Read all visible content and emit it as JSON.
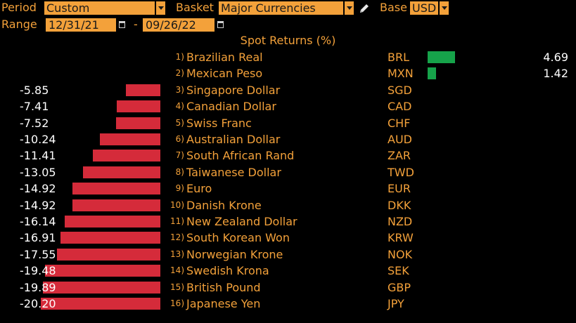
{
  "controls": {
    "period_label": "Period",
    "period_value": "Custom",
    "basket_label": "Basket",
    "basket_value": "Major Currencies",
    "base_label": "Base",
    "base_value": "USD",
    "range_label": "Range",
    "range_start": "12/31/21",
    "range_separator": "-",
    "range_end": "09/26/22"
  },
  "colors": {
    "accent": "#f3a13a",
    "negative": "#d52b3a",
    "positive": "#16a34a",
    "value_text": "#ffffff",
    "background": "#000000"
  },
  "chart_data": {
    "type": "bar",
    "title": "Spot Returns (%)",
    "rows": [
      {
        "rank": "1)",
        "name": "Brazilian Real",
        "code": "BRL",
        "display": "4.69",
        "value": 4.69
      },
      {
        "rank": "2)",
        "name": "Mexican Peso",
        "code": "MXN",
        "display": "1.42",
        "value": 1.42
      },
      {
        "rank": "3)",
        "name": "Singapore Dollar",
        "code": "SGD",
        "display": "-5.85",
        "value": -5.85
      },
      {
        "rank": "4)",
        "name": "Canadian Dollar",
        "code": "CAD",
        "display": "-7.41",
        "value": -7.41
      },
      {
        "rank": "5)",
        "name": "Swiss Franc",
        "code": "CHF",
        "display": "-7.52",
        "value": -7.52
      },
      {
        "rank": "6)",
        "name": "Australian Dollar",
        "code": "AUD",
        "display": "-10.24",
        "value": -10.24
      },
      {
        "rank": "7)",
        "name": "South African Rand",
        "code": "ZAR",
        "display": "-11.41",
        "value": -11.41
      },
      {
        "rank": "8)",
        "name": "Taiwanese Dollar",
        "code": "TWD",
        "display": "-13.05",
        "value": -13.05
      },
      {
        "rank": "9)",
        "name": "Euro",
        "code": "EUR",
        "display": "-14.92",
        "value": -14.92
      },
      {
        "rank": "10)",
        "name": "Danish Krone",
        "code": "DKK",
        "display": "-14.92",
        "value": -14.92
      },
      {
        "rank": "11)",
        "name": "New Zealand Dollar",
        "code": "NZD",
        "display": "-16.14",
        "value": -16.14
      },
      {
        "rank": "12)",
        "name": "South Korean Won",
        "code": "KRW",
        "display": "-16.91",
        "value": -16.91
      },
      {
        "rank": "13)",
        "name": "Norwegian Krone",
        "code": "NOK",
        "display": "-17.55",
        "value": -17.55
      },
      {
        "rank": "14)",
        "name": "Swedish Krona",
        "code": "SEK",
        "display": "-19.48",
        "value": -19.48
      },
      {
        "rank": "15)",
        "name": "British Pound",
        "code": "GBP",
        "display": "-19.89",
        "value": -19.89
      },
      {
        "rank": "16)",
        "name": "Japanese Yen",
        "code": "JPY",
        "display": "-20.20",
        "value": -20.2
      }
    ]
  }
}
